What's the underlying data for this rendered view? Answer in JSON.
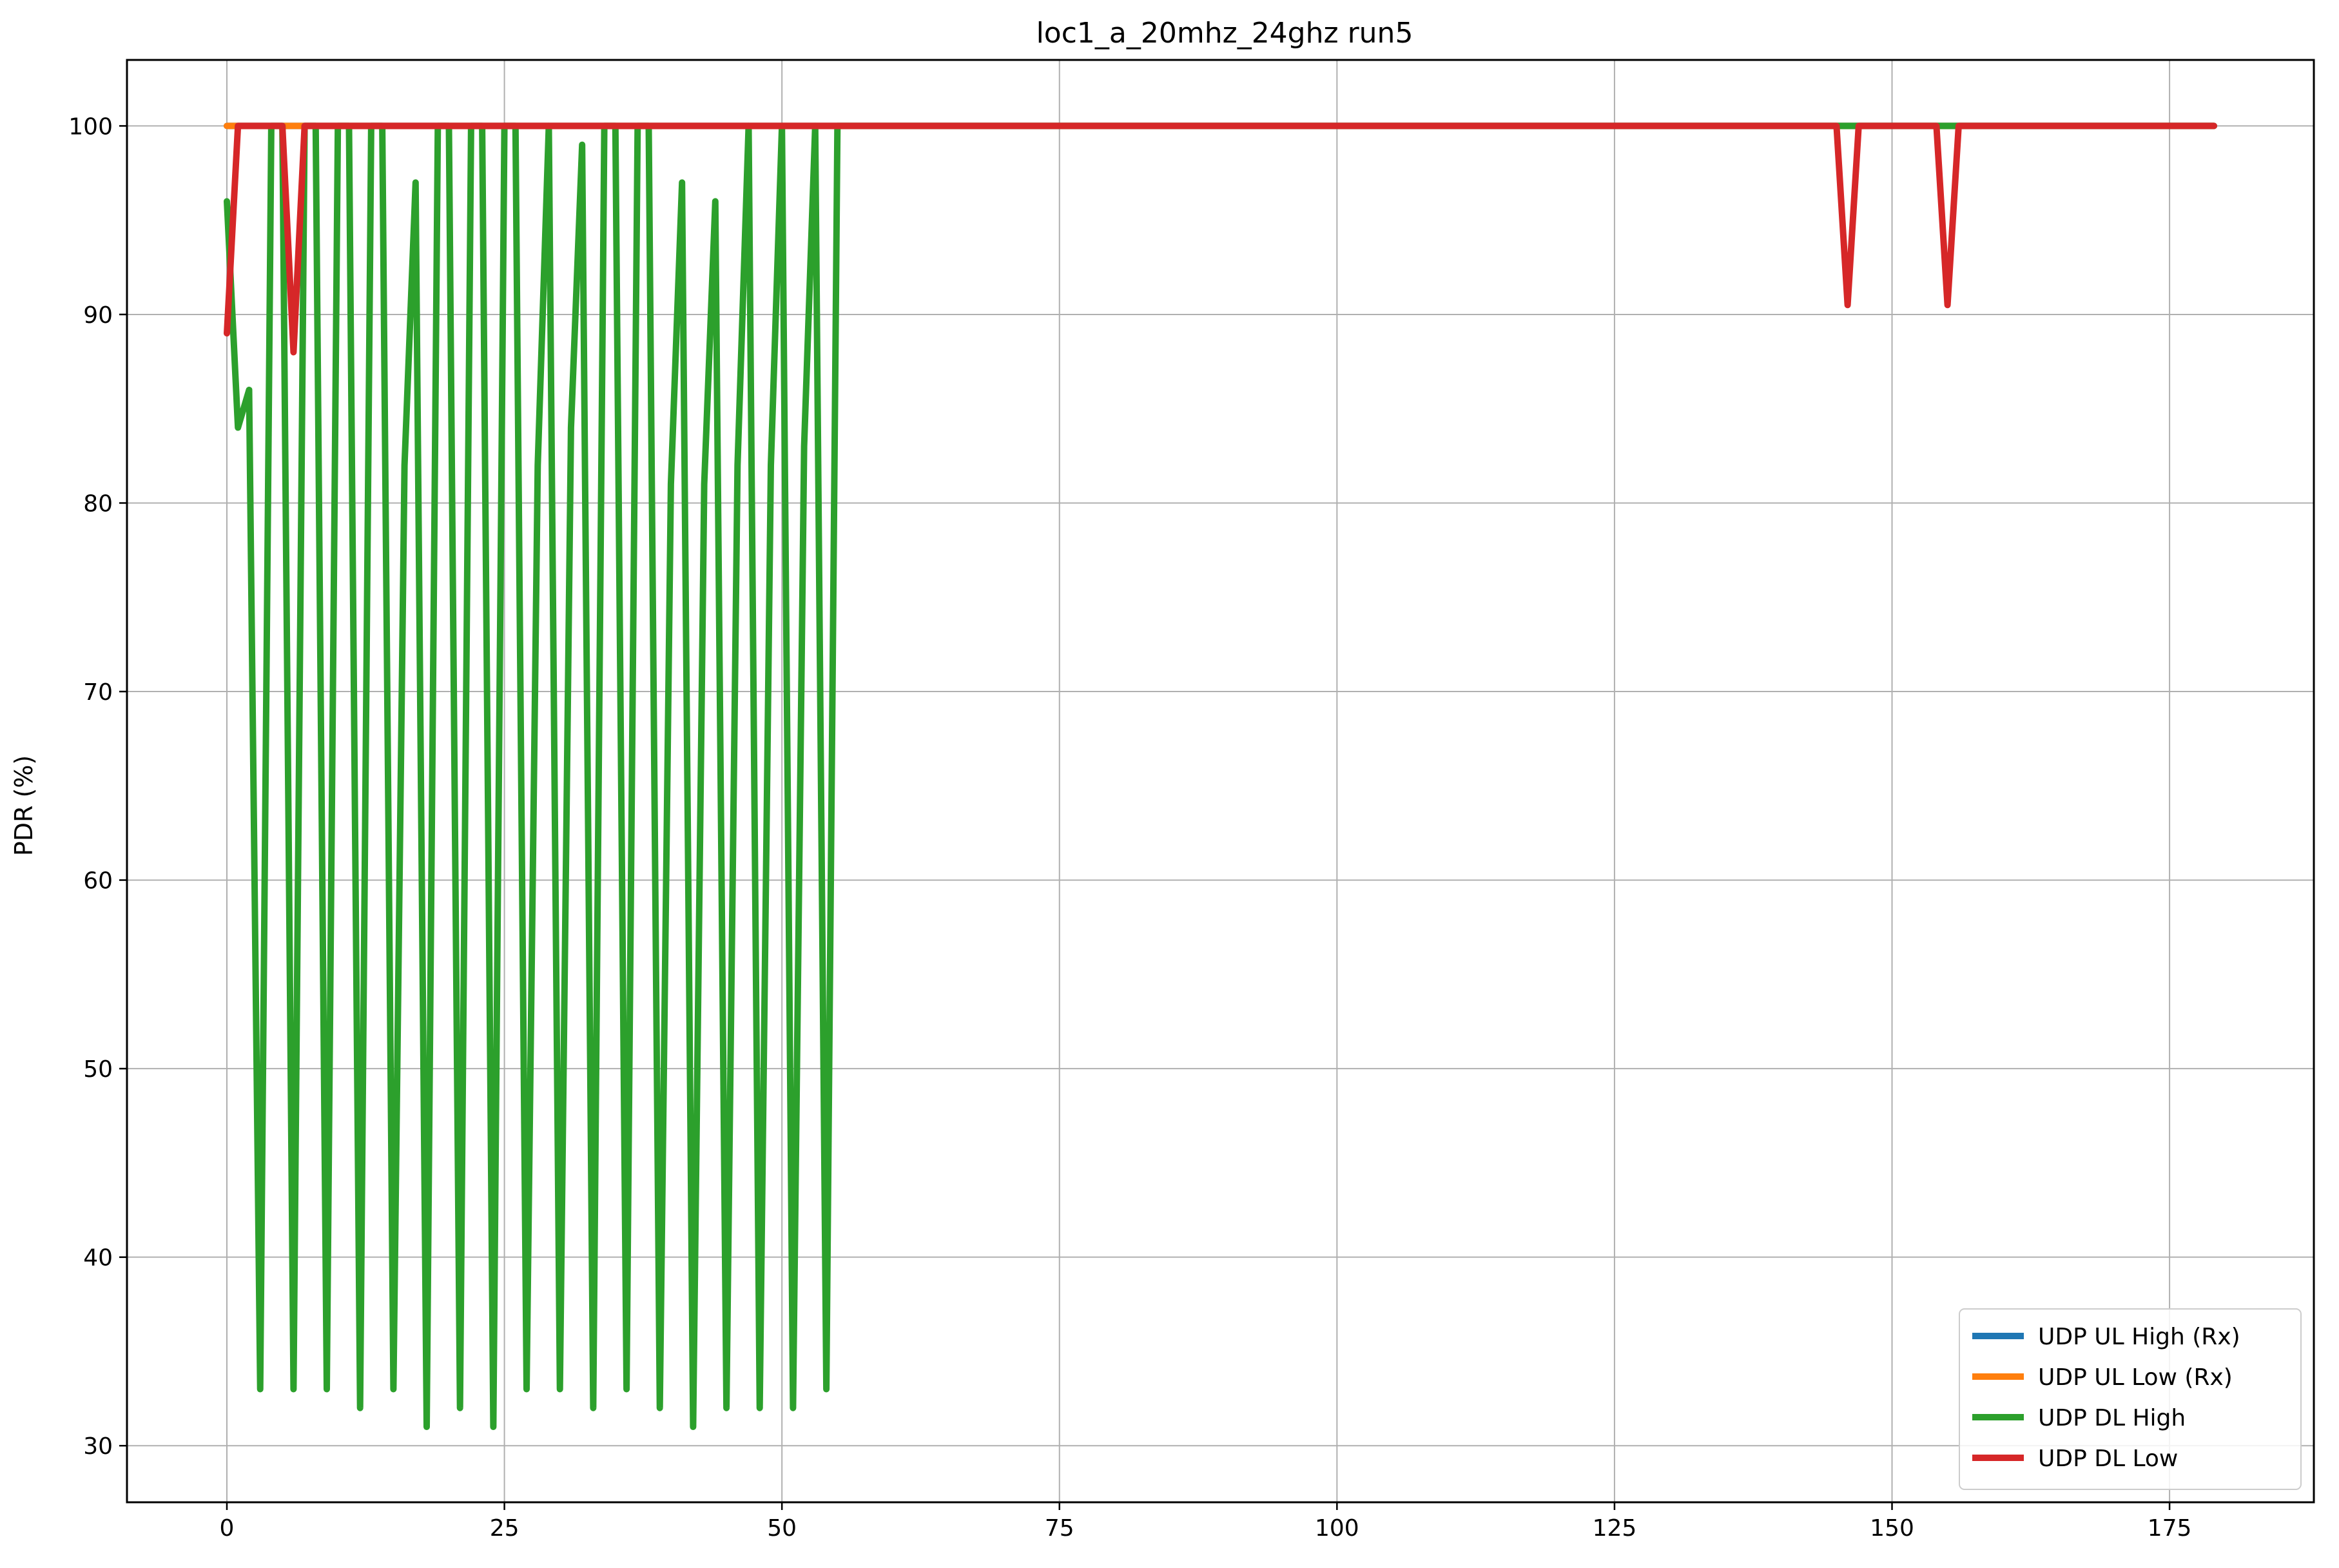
{
  "chart_data": {
    "type": "line",
    "title": "loc1_a_20mhz_24ghz run5",
    "xlabel": "",
    "ylabel": "PDR (%)",
    "xlim": [
      -9,
      188
    ],
    "ylim": [
      27.0,
      103.5
    ],
    "xticks": [
      0,
      25,
      50,
      75,
      100,
      125,
      150,
      175
    ],
    "yticks": [
      30,
      40,
      50,
      60,
      70,
      80,
      90,
      100
    ],
    "grid": true,
    "legend_position": "bottom-right",
    "series": [
      {
        "name": "UDP UL High (Rx)",
        "color": "#1f77b4",
        "x": [
          0,
          179
        ],
        "y": [
          100,
          100
        ]
      },
      {
        "name": "UDP UL Low (Rx)",
        "color": "#ff7f0e",
        "x": [
          0,
          179
        ],
        "y": [
          100,
          100
        ]
      },
      {
        "name": "UDP DL High",
        "color": "#2ca02c",
        "x": [
          0,
          1,
          2,
          3,
          4,
          5,
          6,
          7,
          8,
          9,
          10,
          11,
          12,
          13,
          14,
          15,
          16,
          17,
          18,
          19,
          20,
          21,
          22,
          23,
          24,
          25,
          26,
          27,
          28,
          29,
          30,
          31,
          32,
          33,
          34,
          35,
          36,
          37,
          38,
          39,
          40,
          41,
          42,
          43,
          44,
          45,
          46,
          47,
          48,
          49,
          50,
          51,
          52,
          53,
          54,
          55,
          56,
          179
        ],
        "y": [
          96,
          84,
          86,
          33,
          100,
          100,
          33,
          100,
          100,
          33,
          100,
          100,
          32,
          100,
          100,
          33,
          82,
          97,
          31,
          100,
          100,
          32,
          100,
          100,
          31,
          100,
          100,
          33,
          82,
          100,
          33,
          84,
          99,
          32,
          100,
          100,
          33,
          100,
          100,
          32,
          81,
          97,
          31,
          81,
          96,
          32,
          82,
          100,
          32,
          82,
          100,
          32,
          83,
          100,
          33,
          100,
          100,
          100
        ]
      },
      {
        "name": "UDP DL Low",
        "color": "#d62728",
        "x": [
          0,
          1,
          2,
          3,
          4,
          5,
          6,
          7,
          8,
          145,
          146,
          147,
          148,
          153,
          154,
          155,
          156,
          179
        ],
        "y": [
          89,
          100,
          100,
          100,
          100,
          100,
          88,
          100,
          100,
          100,
          90.5,
          100,
          100,
          100,
          100,
          90.5,
          100,
          100
        ]
      }
    ]
  }
}
